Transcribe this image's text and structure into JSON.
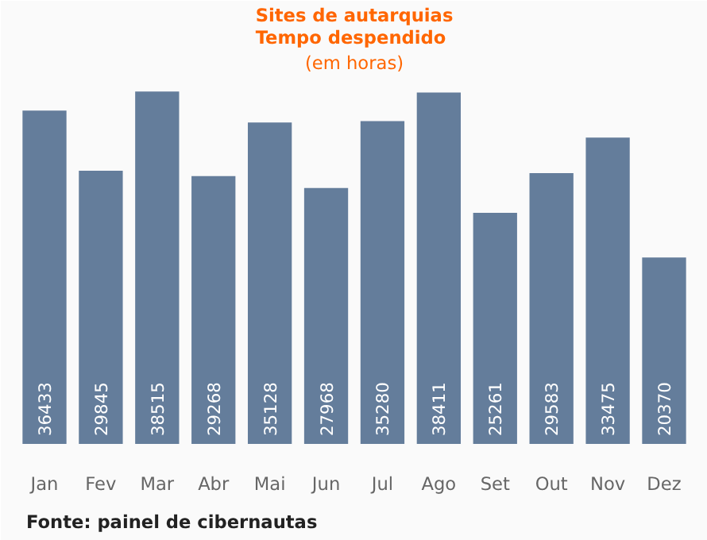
{
  "chart_data": {
    "type": "bar",
    "title": "Sites de autarquias\nTempo despendido",
    "subtitle": "(em horas)",
    "categories": [
      "Jan",
      "Fev",
      "Mar",
      "Abr",
      "Mai",
      "Jun",
      "Jul",
      "Ago",
      "Set",
      "Out",
      "Nov",
      "Dez"
    ],
    "values": [
      36433,
      29845,
      38515,
      29268,
      35128,
      27968,
      35280,
      38411,
      25261,
      29583,
      33475,
      20370
    ],
    "color": "#647d9b",
    "data_labels": true,
    "grid": false,
    "annotations": [
      "Fonte: painel de cibernautas"
    ]
  }
}
